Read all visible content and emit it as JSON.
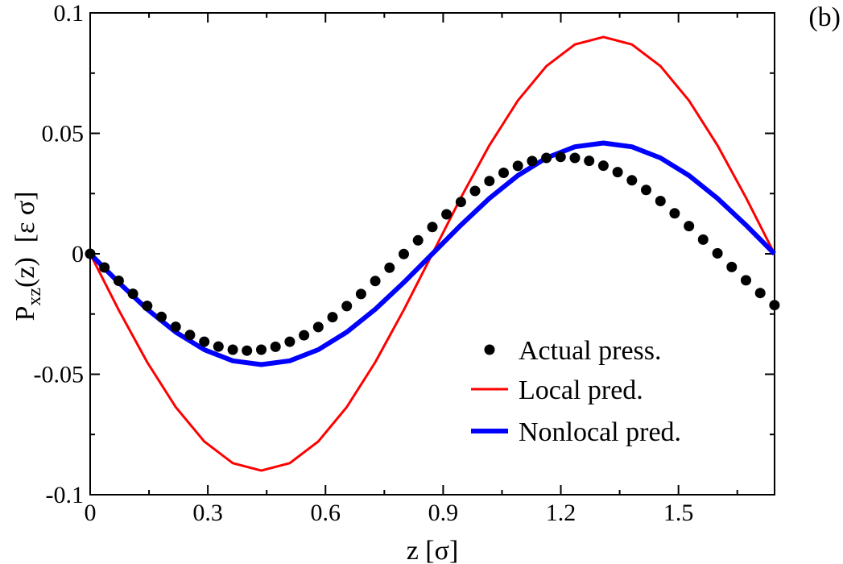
{
  "panel_label": "(b)",
  "chart_data": {
    "type": "line",
    "title": "",
    "xlabel": "z  [σ]",
    "ylabel": {
      "main": "P",
      "subscript": "xz",
      "arg": "(z)",
      "units": "[ε σ]"
    },
    "xlim": [
      0,
      1.745
    ],
    "ylim": [
      -0.1,
      0.1
    ],
    "x_ticks": [
      {
        "value": 0,
        "label": "0"
      },
      {
        "value": 0.3,
        "label": "0.3"
      },
      {
        "value": 0.6,
        "label": "0.6"
      },
      {
        "value": 0.9,
        "label": "0.9"
      },
      {
        "value": 1.2,
        "label": "1.2"
      },
      {
        "value": 1.5,
        "label": "1.5"
      }
    ],
    "y_ticks": [
      {
        "value": -0.1,
        "label": "-0.1"
      },
      {
        "value": -0.05,
        "label": "-0.05"
      },
      {
        "value": 0,
        "label": "0"
      },
      {
        "value": 0.05,
        "label": "0.05"
      },
      {
        "value": 0.1,
        "label": "0.1"
      }
    ],
    "legend_position": "bottom-right",
    "series": [
      {
        "name": "Actual press.",
        "kind": "scatter",
        "color": "#000000",
        "x": [
          0.0,
          0.0363,
          0.0727,
          0.109,
          0.1454,
          0.1817,
          0.2181,
          0.2544,
          0.2908,
          0.3271,
          0.3635,
          0.3998,
          0.4362,
          0.4725,
          0.5089,
          0.5452,
          0.5816,
          0.6179,
          0.6543,
          0.6906,
          0.727,
          0.7633,
          0.7997,
          0.836,
          0.8724,
          0.9087,
          0.9451,
          0.9814,
          1.0178,
          1.0541,
          1.0905,
          1.1268,
          1.1632,
          1.1995,
          1.2359,
          1.2722,
          1.3086,
          1.3449,
          1.3813,
          1.4176,
          1.454,
          1.4903,
          1.5267,
          1.563,
          1.5994,
          1.6357,
          1.6721,
          1.7084,
          1.7448
        ],
        "y": [
          0.0,
          -0.0057,
          -0.0112,
          -0.0166,
          -0.0216,
          -0.0262,
          -0.0303,
          -0.0337,
          -0.0365,
          -0.0385,
          -0.0398,
          -0.0402,
          -0.0398,
          -0.0386,
          -0.0365,
          -0.0338,
          -0.0304,
          -0.0263,
          -0.0217,
          -0.0167,
          -0.0113,
          -0.0058,
          -0.0001,
          0.0056,
          0.0111,
          0.0164,
          0.0215,
          0.0261,
          0.0302,
          0.0336,
          0.0365,
          0.0385,
          0.0398,
          0.0402,
          0.0398,
          0.0386,
          0.0366,
          0.0339,
          0.0305,
          0.0265,
          0.0219,
          0.0168,
          0.0115,
          0.0059,
          0.0002,
          -0.0055,
          -0.011,
          -0.0163,
          -0.0213
        ]
      },
      {
        "name": "Local pred.",
        "kind": "line",
        "color": "#ff0000",
        "x": [
          0.0,
          0.0727,
          0.1454,
          0.2181,
          0.2908,
          0.3635,
          0.4362,
          0.5089,
          0.5816,
          0.6543,
          0.727,
          0.7997,
          0.8724,
          0.9451,
          1.0178,
          1.0905,
          1.1632,
          1.2359,
          1.3086,
          1.3813,
          1.454,
          1.5267,
          1.5994,
          1.6721,
          1.7448
        ],
        "y": [
          0.0,
          -0.0233,
          -0.045,
          -0.0636,
          -0.0779,
          -0.0869,
          -0.09,
          -0.0869,
          -0.0779,
          -0.0636,
          -0.045,
          -0.0233,
          0.0,
          0.0233,
          0.045,
          0.0636,
          0.0779,
          0.0869,
          0.09,
          0.0869,
          0.0779,
          0.0636,
          0.045,
          0.0233,
          0.0
        ]
      },
      {
        "name": "Nonlocal pred.",
        "kind": "line",
        "color": "#0000ff",
        "x": [
          0.0,
          0.0727,
          0.1454,
          0.2181,
          0.2908,
          0.3635,
          0.4362,
          0.5089,
          0.5816,
          0.6543,
          0.727,
          0.7997,
          0.8724,
          0.9451,
          1.0178,
          1.0905,
          1.1632,
          1.2359,
          1.3086,
          1.3813,
          1.454,
          1.5267,
          1.5994,
          1.6721,
          1.7448
        ],
        "y": [
          0.0,
          -0.0119,
          -0.023,
          -0.0325,
          -0.0398,
          -0.0444,
          -0.046,
          -0.0444,
          -0.0398,
          -0.0325,
          -0.023,
          -0.0119,
          0.0,
          0.0119,
          0.023,
          0.0325,
          0.0398,
          0.0444,
          0.046,
          0.0444,
          0.0398,
          0.0325,
          0.023,
          0.0119,
          0.0
        ]
      }
    ]
  }
}
